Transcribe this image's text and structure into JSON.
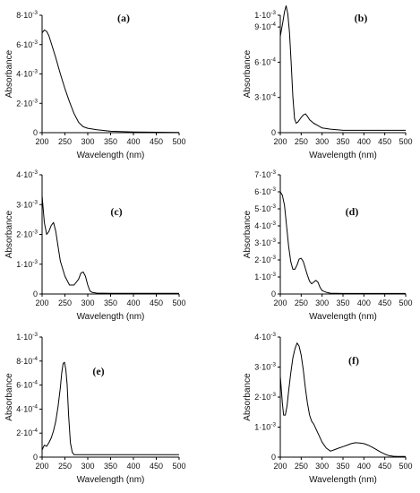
{
  "colors": {
    "line": "#000000",
    "axis": "#000000",
    "background": "#ffffff"
  },
  "chart_data": [
    {
      "panel": "(a)",
      "type": "line",
      "xlabel": "Wavelength (nm)",
      "ylabel": "Absorbance",
      "xlim": [
        200,
        500
      ],
      "ylim": [
        0,
        0.008
      ],
      "xticks": [
        200,
        250,
        300,
        350,
        400,
        450,
        500
      ],
      "yticks": [
        0,
        0.002,
        0.004,
        0.006,
        0.008
      ],
      "ytick_mantissa": [
        "0",
        "2",
        "4",
        "6",
        "8"
      ],
      "ytick_exponent": "-3",
      "grid": false,
      "series": [
        {
          "x": [
            200,
            205,
            210,
            215,
            220,
            230,
            240,
            250,
            260,
            270,
            280,
            290,
            300,
            320,
            350,
            400,
            450,
            500
          ],
          "y": [
            0.0068,
            0.007,
            0.0069,
            0.0066,
            0.0061,
            0.0051,
            0.004,
            0.003,
            0.0021,
            0.0013,
            0.0007,
            0.0004,
            0.0003,
            0.0002,
            0.0001,
            5e-05,
            3e-05,
            2e-05
          ]
        }
      ]
    },
    {
      "panel": "(b)",
      "type": "line",
      "xlabel": "Wavelength (nm)",
      "ylabel": "Absorbance",
      "xlim": [
        200,
        500
      ],
      "ylim": [
        0,
        0.001
      ],
      "xticks": [
        200,
        250,
        300,
        350,
        400,
        450,
        500
      ],
      "yticks": [
        0,
        0.0003,
        0.0006,
        0.0009
      ],
      "ytick_mantissa": [
        "0",
        "3",
        "6",
        "9"
      ],
      "ytick_exponent": "-4",
      "top_tick_mantissa": "1",
      "top_tick_exponent": "-3",
      "grid": false,
      "series": [
        {
          "x": [
            200,
            203,
            206,
            210,
            214,
            218,
            222,
            226,
            230,
            234,
            238,
            242,
            246,
            250,
            255,
            260,
            265,
            270,
            280,
            290,
            300,
            320,
            350,
            400,
            450,
            500
          ],
          "y": [
            0.00082,
            0.00088,
            0.00094,
            0.00103,
            0.00108,
            0.00101,
            0.00085,
            0.0006,
            0.00031,
            0.00012,
            8e-05,
            9e-05,
            0.00011,
            0.00013,
            0.00015,
            0.00016,
            0.00014,
            0.00011,
            8e-05,
            6e-05,
            4e-05,
            3e-05,
            2e-05,
            2e-05,
            2e-05,
            2e-05
          ]
        }
      ]
    },
    {
      "panel": "(c)",
      "type": "line",
      "xlabel": "Wavelength (nm)",
      "ylabel": "Absorbance",
      "xlim": [
        200,
        500
      ],
      "ylim": [
        0,
        0.004
      ],
      "xticks": [
        200,
        250,
        300,
        350,
        400,
        450,
        500
      ],
      "yticks": [
        0,
        0.001,
        0.002,
        0.003,
        0.004
      ],
      "ytick_mantissa": [
        "0",
        "1",
        "2",
        "3",
        "4"
      ],
      "ytick_exponent": "-3",
      "grid": false,
      "series": [
        {
          "x": [
            200,
            205,
            210,
            215,
            220,
            225,
            230,
            235,
            240,
            250,
            260,
            270,
            280,
            285,
            290,
            295,
            300,
            305,
            310,
            320,
            350,
            400,
            450,
            500
          ],
          "y": [
            0.0033,
            0.0024,
            0.002,
            0.0021,
            0.0023,
            0.0024,
            0.0021,
            0.0016,
            0.0011,
            0.0006,
            0.0003,
            0.0003,
            0.0005,
            0.0007,
            0.00074,
            0.0006,
            0.0003,
            0.0001,
            5e-05,
            3e-05,
            2e-05,
            2e-05,
            2e-05,
            2e-05
          ]
        }
      ]
    },
    {
      "panel": "(d)",
      "type": "line",
      "xlabel": "Wavelength (nm)",
      "ylabel": "Absorbance",
      "xlim": [
        200,
        500
      ],
      "ylim": [
        0,
        0.007
      ],
      "xticks": [
        200,
        250,
        300,
        350,
        400,
        450,
        500
      ],
      "yticks": [
        0,
        0.001,
        0.002,
        0.003,
        0.004,
        0.005,
        0.006,
        0.007
      ],
      "ytick_mantissa": [
        "0",
        "1",
        "2",
        "3",
        "4",
        "5",
        "6",
        "7"
      ],
      "ytick_exponent": "-3",
      "grid": false,
      "series": [
        {
          "x": [
            200,
            205,
            210,
            215,
            220,
            225,
            230,
            235,
            240,
            245,
            250,
            255,
            260,
            265,
            270,
            275,
            280,
            285,
            290,
            295,
            300,
            310,
            320,
            350,
            400,
            450,
            500
          ],
          "y": [
            0.006,
            0.0058,
            0.0052,
            0.004,
            0.0028,
            0.0019,
            0.00145,
            0.00145,
            0.0017,
            0.00205,
            0.0021,
            0.0019,
            0.0015,
            0.0011,
            0.00075,
            0.0006,
            0.0007,
            0.0008,
            0.0007,
            0.0004,
            0.0002,
            0.0001,
            5e-05,
            3e-05,
            3e-05,
            3e-05,
            3e-05
          ]
        }
      ]
    },
    {
      "panel": "(e)",
      "type": "line",
      "xlabel": "Wavelength (nm)",
      "ylabel": "Absorbance",
      "xlim": [
        200,
        500
      ],
      "ylim": [
        0,
        0.001
      ],
      "xticks": [
        200,
        250,
        300,
        350,
        400,
        450,
        500
      ],
      "yticks": [
        0,
        0.0002,
        0.0004,
        0.0006,
        0.0008
      ],
      "ytick_mantissa": [
        "0",
        "2",
        "4",
        "6",
        "8"
      ],
      "ytick_exponent": "-4",
      "top_tick_mantissa": "1",
      "top_tick_exponent": "-3",
      "grid": false,
      "series": [
        {
          "x": [
            200,
            205,
            210,
            215,
            220,
            225,
            230,
            235,
            240,
            243,
            246,
            249,
            252,
            255,
            258,
            262,
            266,
            270,
            280,
            300,
            350,
            400,
            450,
            500
          ],
          "y": [
            6e-05,
            0.0001,
            9e-05,
            0.00012,
            0.00016,
            0.00022,
            0.0003,
            0.00042,
            0.00058,
            0.0007,
            0.00078,
            0.00079,
            0.00073,
            0.0006,
            0.00035,
            0.00012,
            4e-05,
            2e-05,
            2e-05,
            2e-05,
            2e-05,
            2e-05,
            2e-05,
            2e-05
          ]
        }
      ]
    },
    {
      "panel": "(f)",
      "type": "line",
      "xlabel": "Wavelength (nm)",
      "ylabel": "Absorbance",
      "xlim": [
        200,
        500
      ],
      "ylim": [
        0,
        0.004
      ],
      "xticks": [
        200,
        250,
        300,
        350,
        400,
        450,
        500
      ],
      "yticks": [
        0,
        0.001,
        0.002,
        0.003,
        0.004
      ],
      "ytick_mantissa": [
        "0",
        "1",
        "2",
        "3",
        "4"
      ],
      "ytick_exponent": "-3",
      "grid": false,
      "series": [
        {
          "x": [
            200,
            205,
            208,
            212,
            216,
            220,
            225,
            230,
            235,
            240,
            245,
            250,
            255,
            260,
            265,
            270,
            275,
            280,
            290,
            300,
            310,
            320,
            330,
            340,
            350,
            360,
            370,
            380,
            390,
            400,
            410,
            420,
            430,
            440,
            450,
            460,
            470,
            480,
            490,
            500
          ],
          "y": [
            0.0027,
            0.0018,
            0.0014,
            0.0014,
            0.0017,
            0.0022,
            0.0028,
            0.0033,
            0.0036,
            0.0038,
            0.0037,
            0.0034,
            0.0029,
            0.0023,
            0.0018,
            0.0014,
            0.0012,
            0.0011,
            0.0008,
            0.0005,
            0.0003,
            0.0002,
            0.00025,
            0.0003,
            0.00035,
            0.0004,
            0.00045,
            0.00048,
            0.00047,
            0.00045,
            0.0004,
            0.00033,
            0.00025,
            0.00017,
            0.0001,
            5e-05,
            3e-05,
            2e-05,
            2e-05,
            2e-05
          ]
        }
      ]
    }
  ]
}
